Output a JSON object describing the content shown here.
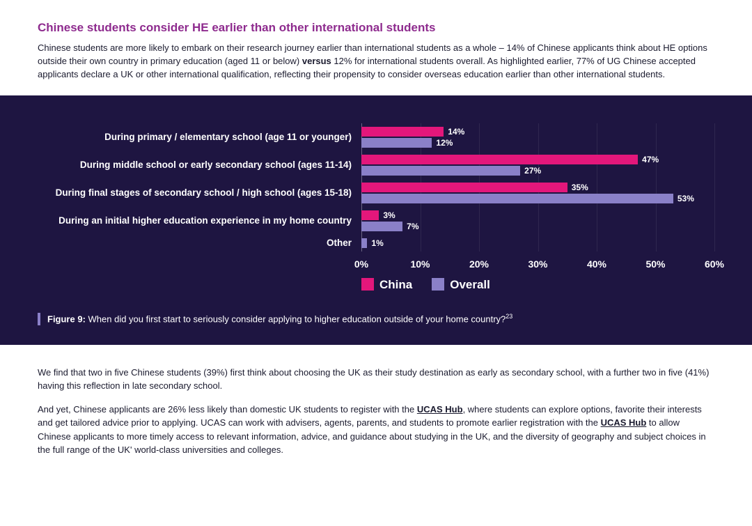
{
  "header": {
    "title": "Chinese students consider HE earlier than other international students",
    "intro_pre": "Chinese students are more likely to embark on their research journey earlier than international students as a whole – 14% of Chinese applicants think about HE options outside their own country in primary education (aged 11 or below) ",
    "intro_bold": "versus",
    "intro_post": " 12% for international students overall. As highlighted earlier, 77% of UG Chinese accepted applicants declare a UK or other international qualification, reflecting their propensity to consider overseas education earlier than other international students."
  },
  "chart": {
    "type": "grouped-horizontal-bar",
    "background_color": "#1e1541",
    "text_color": "#ffffff",
    "series": [
      {
        "name": "China",
        "color": "#e3177b"
      },
      {
        "name": "Overall",
        "color": "#8a80c8"
      }
    ],
    "xmax": 60,
    "xtick_step": 10,
    "ticks": [
      "0%",
      "10%",
      "20%",
      "30%",
      "40%",
      "50%",
      "60%"
    ],
    "categories": [
      {
        "label": "During primary / elementary school (age 11 or younger)",
        "china": 14,
        "china_label": "14%",
        "overall": 12,
        "overall_label": "12%"
      },
      {
        "label": "During middle school or early secondary school (ages 11-14)",
        "china": 47,
        "china_label": "47%",
        "overall": 27,
        "overall_label": "27%"
      },
      {
        "label": "During final stages of secondary school / high school (ages 15-18)",
        "china": 35,
        "china_label": "35%",
        "overall": 53,
        "overall_label": "53%"
      },
      {
        "label": "During an initial higher education experience in my home country",
        "china": 3,
        "china_label": "3%",
        "overall": 7,
        "overall_label": "7%"
      },
      {
        "label": "Other",
        "single": true,
        "overall": 1,
        "overall_label": "1%"
      }
    ],
    "caption_label": "Figure 9:",
    "caption_text": " When did you first start to seriously consider applying to higher education outside of your home country?",
    "caption_sup": "23"
  },
  "footer": {
    "p1": "We find that two in five Chinese students (39%) first think about choosing the UK as their study destination as early as secondary school, with a further two in five (41%) having this reflection in late secondary school.",
    "p2_a": "And yet, Chinese applicants are 26% less likely than domestic UK students to register with the ",
    "p2_hub1": "UCAS Hub",
    "p2_b": ", where students can explore options, favorite their interests and get tailored advice prior to applying. UCAS can work with advisers, agents, parents, and students to promote earlier registration with the ",
    "p2_hub2": "UCAS Hub",
    "p2_c": " to allow Chinese applicants to more timely access to relevant information, advice, and guidance about studying in the UK, and the diversity of geography and subject choices in the full range of the UK' world-class universities and colleges."
  }
}
